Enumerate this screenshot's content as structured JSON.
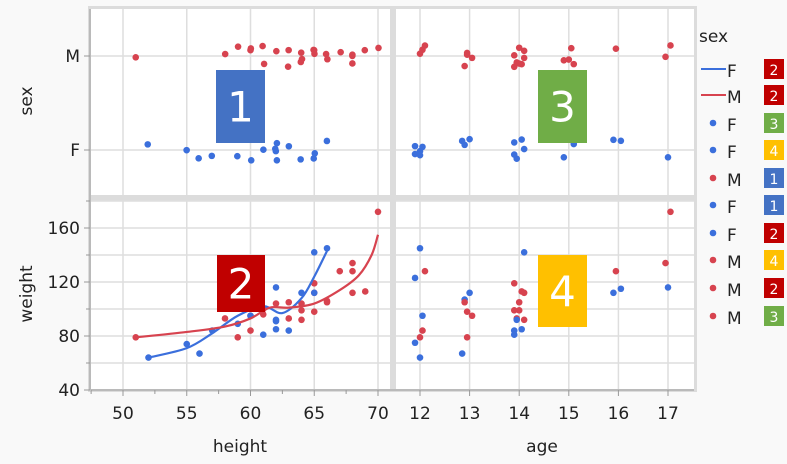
{
  "colors": {
    "F": "#3b6fdc",
    "M": "#d7434f",
    "label_1": "#4472C4",
    "label_2": "#C00000",
    "label_3": "#70AD47",
    "label_4": "#FFC000"
  },
  "chart_data": {
    "type": "scatter-matrix",
    "grid": true,
    "x_axes": [
      {
        "label": "height",
        "ticks": [
          "50",
          "55",
          "60",
          "65",
          "70"
        ],
        "range": [
          47.5,
          71
        ]
      },
      {
        "label": "age",
        "ticks": [
          "12",
          "13",
          "14",
          "15",
          "16",
          "17"
        ],
        "range": [
          11.55,
          17.5
        ]
      }
    ],
    "y_axes": [
      {
        "label": "sex",
        "ticks": [
          "M",
          "F"
        ],
        "categories": [
          "F",
          "M"
        ]
      },
      {
        "label": "weight",
        "ticks": [
          "160",
          "120",
          "80",
          "40"
        ],
        "range": [
          40,
          180
        ]
      }
    ],
    "height_weight": [
      {
        "sex": "M",
        "x": 51,
        "y": 79
      },
      {
        "sex": "F",
        "x": 52,
        "y": 64
      },
      {
        "sex": "F",
        "x": 55,
        "y": 74
      },
      {
        "sex": "F",
        "x": 56,
        "y": 67
      },
      {
        "sex": "M",
        "x": 58,
        "y": 93
      },
      {
        "sex": "F",
        "x": 59,
        "y": 89
      },
      {
        "sex": "M",
        "x": 59,
        "y": 79
      },
      {
        "sex": "M",
        "x": 60,
        "y": 84
      },
      {
        "sex": "M",
        "x": 60,
        "y": 95
      },
      {
        "sex": "F",
        "x": 61,
        "y": 81
      },
      {
        "sex": "M",
        "x": 61,
        "y": 96
      },
      {
        "sex": "F",
        "x": 62,
        "y": 116
      },
      {
        "sex": "F",
        "x": 62,
        "y": 92
      },
      {
        "sex": "F",
        "x": 62,
        "y": 91
      },
      {
        "sex": "F",
        "x": 62,
        "y": 85
      },
      {
        "sex": "M",
        "x": 62,
        "y": 104
      },
      {
        "sex": "M",
        "x": 63,
        "y": 105
      },
      {
        "sex": "M",
        "x": 63,
        "y": 93
      },
      {
        "sex": "F",
        "x": 63,
        "y": 84
      },
      {
        "sex": "M",
        "x": 64,
        "y": 99
      },
      {
        "sex": "M",
        "x": 64,
        "y": 92
      },
      {
        "sex": "F",
        "x": 64,
        "y": 112
      },
      {
        "sex": "F",
        "x": 65,
        "y": 142
      },
      {
        "sex": "M",
        "x": 65,
        "y": 119
      },
      {
        "sex": "M",
        "x": 65,
        "y": 112
      },
      {
        "sex": "F",
        "x": 65,
        "y": 112
      },
      {
        "sex": "M",
        "x": 65,
        "y": 98
      },
      {
        "sex": "F",
        "x": 66,
        "y": 145
      },
      {
        "sex": "M",
        "x": 66,
        "y": 106
      },
      {
        "sex": "M",
        "x": 66,
        "y": 105
      },
      {
        "sex": "M",
        "x": 67,
        "y": 128
      },
      {
        "sex": "M",
        "x": 68,
        "y": 134
      },
      {
        "sex": "M",
        "x": 68,
        "y": 128
      },
      {
        "sex": "M",
        "x": 68,
        "y": 112
      },
      {
        "sex": "M",
        "x": 69,
        "y": 113
      },
      {
        "sex": "M",
        "x": 70,
        "y": 172
      },
      {
        "sex": "F",
        "x": 57,
        "y": 84
      },
      {
        "sex": "F",
        "x": 60,
        "y": 95
      },
      {
        "sex": "M",
        "x": 61,
        "y": 100
      },
      {
        "sex": "M",
        "x": 64,
        "y": 104
      }
    ],
    "age_weight": [
      {
        "sex": "F",
        "x": 12,
        "y": 145
      },
      {
        "sex": "M",
        "x": 12.1,
        "y": 128
      },
      {
        "sex": "F",
        "x": 11.9,
        "y": 123
      },
      {
        "sex": "F",
        "x": 12.05,
        "y": 95
      },
      {
        "sex": "M",
        "x": 12.05,
        "y": 84
      },
      {
        "sex": "M",
        "x": 12,
        "y": 79
      },
      {
        "sex": "F",
        "x": 11.9,
        "y": 75
      },
      {
        "sex": "F",
        "x": 12,
        "y": 64
      },
      {
        "sex": "F",
        "x": 12.9,
        "y": 107
      },
      {
        "sex": "M",
        "x": 12.9,
        "y": 105
      },
      {
        "sex": "F",
        "x": 13,
        "y": 112
      },
      {
        "sex": "M",
        "x": 12.95,
        "y": 98
      },
      {
        "sex": "M",
        "x": 13.05,
        "y": 95
      },
      {
        "sex": "M",
        "x": 12.95,
        "y": 79
      },
      {
        "sex": "F",
        "x": 12.85,
        "y": 67
      },
      {
        "sex": "M",
        "x": 13.9,
        "y": 119
      },
      {
        "sex": "F",
        "x": 14.1,
        "y": 142
      },
      {
        "sex": "M",
        "x": 14.05,
        "y": 113
      },
      {
        "sex": "M",
        "x": 14.1,
        "y": 112
      },
      {
        "sex": "M",
        "x": 13.9,
        "y": 99
      },
      {
        "sex": "M",
        "x": 14,
        "y": 99
      },
      {
        "sex": "M",
        "x": 13.95,
        "y": 93
      },
      {
        "sex": "F",
        "x": 13.95,
        "y": 92
      },
      {
        "sex": "M",
        "x": 14.1,
        "y": 92
      },
      {
        "sex": "F",
        "x": 14.05,
        "y": 85
      },
      {
        "sex": "F",
        "x": 13.9,
        "y": 84
      },
      {
        "sex": "F",
        "x": 13.9,
        "y": 81
      },
      {
        "sex": "M",
        "x": 14.9,
        "y": 104
      },
      {
        "sex": "M",
        "x": 15,
        "y": 112
      },
      {
        "sex": "M",
        "x": 15.1,
        "y": 128
      },
      {
        "sex": "F",
        "x": 15.1,
        "y": 98
      },
      {
        "sex": "F",
        "x": 14.9,
        "y": 92
      },
      {
        "sex": "M",
        "x": 15.95,
        "y": 128
      },
      {
        "sex": "F",
        "x": 15.9,
        "y": 112
      },
      {
        "sex": "F",
        "x": 16.05,
        "y": 115
      },
      {
        "sex": "M",
        "x": 17.05,
        "y": 172
      },
      {
        "sex": "M",
        "x": 16.95,
        "y": 134
      },
      {
        "sex": "F",
        "x": 17,
        "y": 116
      },
      {
        "sex": "M",
        "x": 14,
        "y": 105
      },
      {
        "sex": "M",
        "x": 15.05,
        "y": 100
      }
    ],
    "smoothers": [
      {
        "name": "F",
        "points": [
          [
            52,
            64
          ],
          [
            55,
            71
          ],
          [
            57,
            82
          ],
          [
            59,
            95
          ],
          [
            61,
            102
          ],
          [
            62.5,
            97
          ],
          [
            64,
            108
          ],
          [
            65,
            124
          ],
          [
            66,
            143
          ]
        ]
      },
      {
        "name": "M",
        "points": [
          [
            51,
            79
          ],
          [
            55,
            83
          ],
          [
            58,
            87
          ],
          [
            60,
            93
          ],
          [
            61.5,
            101
          ],
          [
            63,
            101
          ],
          [
            65,
            104
          ],
          [
            67,
            114
          ],
          [
            68.5,
            125
          ],
          [
            69.5,
            140
          ],
          [
            70,
            155
          ]
        ]
      }
    ]
  },
  "legend": {
    "title": "sex",
    "items": [
      {
        "kind": "line",
        "sex": "F",
        "label": "F",
        "badge": "2",
        "badge_color": "#C00000"
      },
      {
        "kind": "line",
        "sex": "M",
        "label": "M",
        "badge": "2",
        "badge_color": "#C00000"
      },
      {
        "kind": "dot",
        "sex": "F",
        "label": "F",
        "badge": "3",
        "badge_color": "#70AD47",
        "badge_bg": "#4472C4"
      },
      {
        "kind": "dot",
        "sex": "F",
        "label": "F",
        "badge": "4",
        "badge_color": "#FFC000"
      },
      {
        "kind": "dot",
        "sex": "M",
        "label": "M",
        "badge": "1",
        "badge_color": "#4472C4"
      },
      {
        "kind": "dot",
        "sex": "F",
        "label": "F",
        "badge": "1",
        "badge_color": "#4472C4"
      },
      {
        "kind": "dot",
        "sex": "F",
        "label": "F",
        "badge": "2",
        "badge_color": "#C00000"
      },
      {
        "kind": "dot",
        "sex": "M",
        "label": "M",
        "badge": "4",
        "badge_color": "#FFC000"
      },
      {
        "kind": "dot",
        "sex": "M",
        "label": "M",
        "badge": "2",
        "badge_color": "#C00000"
      },
      {
        "kind": "dot",
        "sex": "M",
        "label": "M",
        "badge": "3",
        "badge_color": "#70AD47"
      }
    ]
  },
  "panel_labels": [
    {
      "text": "1",
      "color": "#4472C4"
    },
    {
      "text": "2",
      "color": "#C00000"
    },
    {
      "text": "3",
      "color": "#70AD47"
    },
    {
      "text": "4",
      "color": "#FFC000"
    }
  ]
}
